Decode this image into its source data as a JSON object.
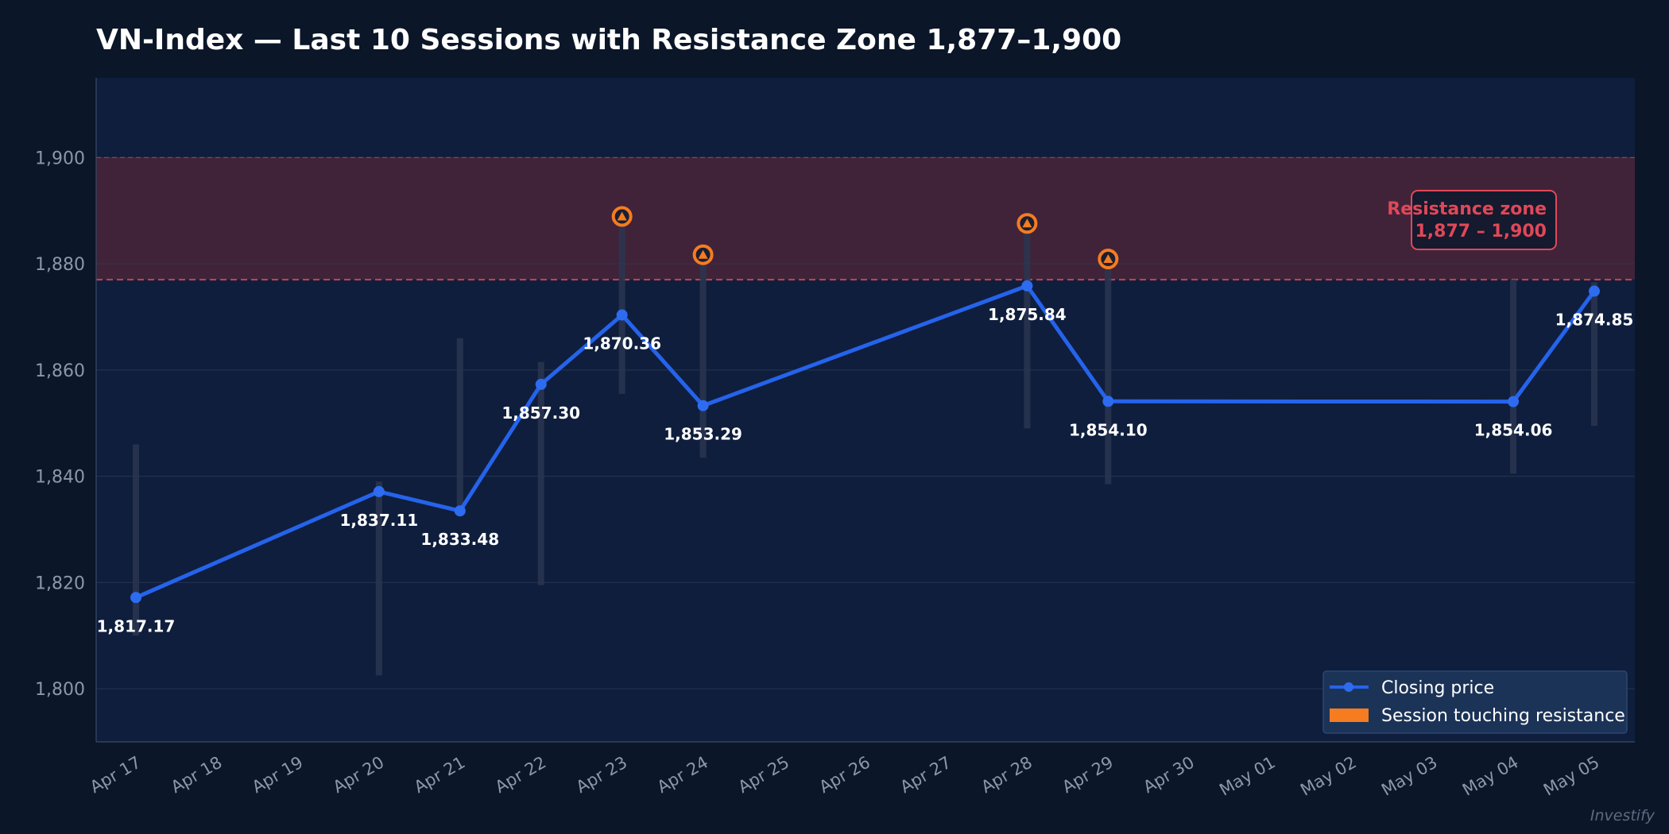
{
  "title": "VN-Index — Last 10 Sessions with Resistance Zone 1,877–1,900",
  "watermark": "Investify",
  "colors": {
    "background": "#0b1628",
    "plot_background": "#0f1e3d",
    "line": "#2563eb",
    "marker": "#2d6cf0",
    "range_bar": "#2a3650",
    "resistance_fill": "#4a2538",
    "resistance_line": "#d14a55",
    "touch_marker": "#f57c20",
    "label_text": "#ffffff",
    "axis_text": "#8b97ab",
    "zone_label": "#e04858"
  },
  "chart_data": {
    "type": "line",
    "title": "VN-Index — Last 10 Sessions with Resistance Zone 1,877–1,900",
    "xlabel": "",
    "ylabel": "",
    "ylim": [
      1790,
      1915
    ],
    "yticks": [
      1800,
      1820,
      1840,
      1860,
      1880,
      1900
    ],
    "ytick_labels": [
      "1,800",
      "1,820",
      "1,840",
      "1,860",
      "1,880",
      "1,900"
    ],
    "xticks": [
      "2025-04-17",
      "2025-04-18",
      "2025-04-19",
      "2025-04-20",
      "2025-04-21",
      "2025-04-22",
      "2025-04-23",
      "2025-04-24",
      "2025-04-25",
      "2025-04-26",
      "2025-04-27",
      "2025-04-28",
      "2025-04-29",
      "2025-04-30",
      "2025-05-01",
      "2025-05-02",
      "2025-05-03",
      "2025-05-04",
      "2025-05-05"
    ],
    "xtick_labels": [
      "Apr 17",
      "Apr 18",
      "Apr 19",
      "Apr 20",
      "Apr 21",
      "Apr 22",
      "Apr 23",
      "Apr 24",
      "Apr 25",
      "Apr 26",
      "Apr 27",
      "Apr 28",
      "Apr 29",
      "Apr 30",
      "May 01",
      "May 02",
      "May 03",
      "May 04",
      "May 05"
    ],
    "xlim": [
      "2025-04-16",
      "2025-05-05"
    ],
    "grid": true,
    "series": [
      {
        "name": "Closing price",
        "points": [
          {
            "date": "2025-04-17",
            "close": 1817.17,
            "label": "1,817.17",
            "low": 1810.0,
            "high": 1846.0,
            "touch": false,
            "touch_level": null
          },
          {
            "date": "2025-04-20",
            "close": 1837.11,
            "label": "1,837.11",
            "low": 1802.5,
            "high": 1839.0,
            "touch": false,
            "touch_level": null
          },
          {
            "date": "2025-04-21",
            "close": 1833.48,
            "label": "1,833.48",
            "low": 1833.0,
            "high": 1866.0,
            "touch": false,
            "touch_level": null
          },
          {
            "date": "2025-04-22",
            "close": 1857.3,
            "label": "1,857.30",
            "low": 1819.5,
            "high": 1861.5,
            "touch": false,
            "touch_level": null
          },
          {
            "date": "2025-04-23",
            "close": 1870.36,
            "label": "1,870.36",
            "low": 1855.5,
            "high": 1888.5,
            "touch": true,
            "touch_level": 1888.9
          },
          {
            "date": "2025-04-24",
            "close": 1853.29,
            "label": "1,853.29",
            "low": 1843.5,
            "high": 1881.5,
            "touch": true,
            "touch_level": 1881.7
          },
          {
            "date": "2025-04-28",
            "close": 1875.84,
            "label": "1,875.84",
            "low": 1849.0,
            "high": 1887.0,
            "touch": true,
            "touch_level": 1887.6
          },
          {
            "date": "2025-04-29",
            "close": 1854.1,
            "label": "1,854.10",
            "low": 1838.5,
            "high": 1880.5,
            "touch": true,
            "touch_level": 1880.9
          },
          {
            "date": "2025-05-04",
            "close": 1854.06,
            "label": "1,854.06",
            "low": 1840.5,
            "high": 1877.0,
            "touch": false,
            "touch_level": null
          },
          {
            "date": "2025-05-05",
            "close": 1874.85,
            "label": "1,874.85",
            "low": 1849.5,
            "high": 1876.5,
            "touch": false,
            "touch_level": null
          }
        ]
      }
    ],
    "resistance_zone": {
      "low": 1877,
      "high": 1900,
      "label_title": "Resistance zone",
      "label_range": "1,877 – 1,900"
    },
    "legend": {
      "position": "bottom-right",
      "entries": [
        {
          "label": "Closing price",
          "kind": "line"
        },
        {
          "label": "Session touching resistance",
          "kind": "patch"
        }
      ]
    }
  }
}
